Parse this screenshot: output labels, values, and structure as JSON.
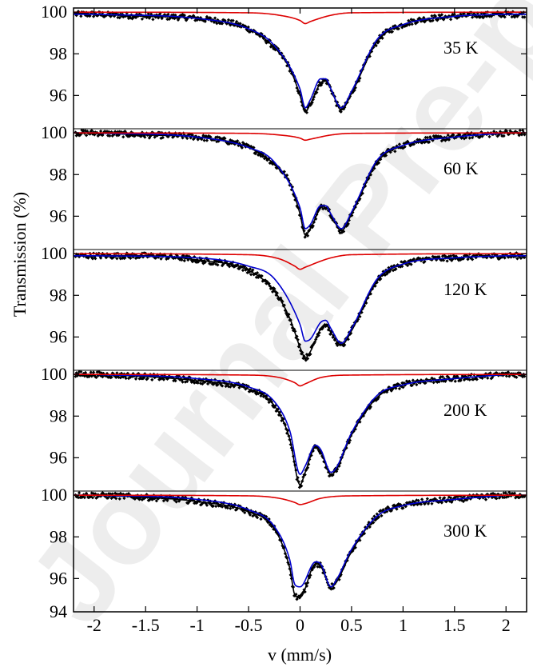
{
  "watermark": "Journal Pre-proof",
  "chart_data": {
    "type": "line",
    "xlabel": "v (mm/s)",
    "ylabel": "Transmission (%)",
    "xlim": [
      -2.2,
      2.2
    ],
    "x_ticks": [
      -2,
      -1.5,
      -1,
      -0.5,
      0,
      0.5,
      1,
      1.5,
      2
    ],
    "x_tick_labels": [
      "-2",
      "-1.5",
      "-1",
      "-0.5",
      "0",
      "0.5",
      "1",
      "1.5",
      "2"
    ],
    "panel_ylim": [
      94.4,
      100.2
    ],
    "y_ticks": [
      96,
      98,
      100
    ],
    "y_tick_labels": [
      "96",
      "98",
      "100"
    ],
    "bottom_tick_label": "94",
    "colors": {
      "data": "#000000",
      "total_fit": "#000000",
      "doublet": "#0000cc",
      "singlet": "#dd0000"
    },
    "panels": [
      {
        "label": "35 K",
        "data_points": {
          "x": [
            -2.0,
            -1.5,
            -1.0,
            -0.5,
            -0.25,
            -0.1,
            0.0,
            0.05,
            0.1,
            0.2,
            0.25,
            0.3,
            0.4,
            0.5,
            0.75,
            1.0,
            1.5,
            2.0
          ],
          "y": [
            99.9,
            99.8,
            99.7,
            99.2,
            98.3,
            97.3,
            96.0,
            95.2,
            95.6,
            96.6,
            96.7,
            96.3,
            95.3,
            96.1,
            98.6,
            99.4,
            99.8,
            99.9
          ]
        },
        "doublet": {
          "x": [
            -2.0,
            -1.0,
            -0.5,
            -0.25,
            0.0,
            0.05,
            0.1,
            0.2,
            0.25,
            0.3,
            0.4,
            0.5,
            0.75,
            1.0,
            1.5,
            2.0
          ],
          "y": [
            99.9,
            99.7,
            99.2,
            98.4,
            96.3,
            95.4,
            95.8,
            96.8,
            96.8,
            96.3,
            95.4,
            96.2,
            98.7,
            99.4,
            99.8,
            99.9
          ]
        },
        "singlet": {
          "x": [
            -2.2,
            -0.5,
            -0.2,
            0.0,
            0.05,
            0.1,
            0.3,
            0.5,
            2.2
          ],
          "y": [
            100.0,
            99.97,
            99.85,
            99.6,
            99.45,
            99.55,
            99.85,
            99.97,
            100.0
          ]
        }
      },
      {
        "label": "60 K",
        "data_points": {
          "x": [
            -2.0,
            -1.5,
            -1.0,
            -0.5,
            -0.25,
            -0.1,
            0.0,
            0.05,
            0.1,
            0.2,
            0.25,
            0.3,
            0.4,
            0.5,
            0.75,
            1.0,
            1.5,
            2.0
          ],
          "y": [
            100.0,
            99.9,
            99.8,
            99.3,
            98.5,
            97.6,
            96.1,
            95.1,
            95.4,
            96.4,
            96.5,
            96.1,
            95.3,
            96.1,
            98.6,
            99.4,
            99.8,
            100.0
          ]
        },
        "doublet": {
          "x": [
            -2.0,
            -1.0,
            -0.5,
            -0.25,
            0.0,
            0.05,
            0.1,
            0.2,
            0.25,
            0.3,
            0.4,
            0.5,
            0.75,
            1.0,
            1.5,
            2.0
          ],
          "y": [
            100.0,
            99.8,
            99.3,
            98.6,
            96.4,
            95.4,
            95.6,
            96.5,
            96.5,
            96.1,
            95.4,
            96.2,
            98.7,
            99.4,
            99.8,
            100.0
          ]
        },
        "singlet": {
          "x": [
            -2.2,
            -0.5,
            -0.2,
            0.0,
            0.05,
            0.1,
            0.3,
            0.5,
            2.2
          ],
          "y": [
            100.0,
            99.98,
            99.9,
            99.75,
            99.65,
            99.7,
            99.9,
            99.98,
            100.0
          ]
        }
      },
      {
        "label": "120 K",
        "data_points": {
          "x": [
            -2.0,
            -1.5,
            -1.0,
            -0.5,
            -0.25,
            -0.1,
            0.0,
            0.05,
            0.1,
            0.2,
            0.25,
            0.3,
            0.4,
            0.5,
            0.75,
            1.0,
            1.5,
            2.0
          ],
          "y": [
            99.9,
            99.9,
            99.7,
            99.2,
            98.2,
            96.9,
            95.5,
            95.0,
            95.3,
            96.4,
            96.6,
            96.2,
            95.6,
            96.3,
            98.7,
            99.5,
            99.8,
            99.9
          ]
        },
        "doublet": {
          "x": [
            -2.0,
            -1.0,
            -0.5,
            -0.25,
            0.0,
            0.05,
            0.1,
            0.2,
            0.25,
            0.3,
            0.4,
            0.5,
            0.75,
            1.0,
            1.5,
            2.0
          ],
          "y": [
            99.9,
            99.8,
            99.4,
            98.8,
            96.6,
            95.8,
            95.9,
            96.7,
            96.8,
            96.4,
            95.7,
            96.4,
            98.8,
            99.5,
            99.8,
            99.9
          ]
        },
        "singlet": {
          "x": [
            -2.2,
            -0.5,
            -0.2,
            -0.05,
            0.0,
            0.05,
            0.3,
            0.5,
            2.2
          ],
          "y": [
            100.0,
            99.95,
            99.75,
            99.4,
            99.25,
            99.35,
            99.8,
            99.95,
            100.0
          ]
        }
      },
      {
        "label": "200 K",
        "data_points": {
          "x": [
            -2.0,
            -1.5,
            -1.0,
            -0.5,
            -0.25,
            -0.1,
            0.0,
            0.05,
            0.15,
            0.2,
            0.3,
            0.35,
            0.5,
            0.75,
            1.0,
            1.5,
            2.0
          ],
          "y": [
            100.0,
            99.9,
            99.7,
            99.3,
            98.5,
            96.9,
            94.7,
            95.3,
            96.5,
            96.3,
            95.2,
            95.4,
            97.1,
            98.9,
            99.5,
            99.8,
            100.0
          ]
        },
        "doublet": {
          "x": [
            -2.0,
            -1.0,
            -0.5,
            -0.25,
            -0.1,
            0.0,
            0.05,
            0.15,
            0.2,
            0.3,
            0.35,
            0.5,
            0.75,
            1.0,
            1.5,
            2.0
          ],
          "y": [
            100.0,
            99.8,
            99.4,
            98.7,
            97.3,
            95.2,
            95.6,
            96.6,
            96.4,
            95.3,
            95.5,
            97.2,
            99.0,
            99.5,
            99.8,
            100.0
          ]
        },
        "singlet": {
          "x": [
            -2.2,
            -0.5,
            -0.2,
            -0.05,
            0.0,
            0.05,
            0.2,
            0.5,
            2.2
          ],
          "y": [
            100.0,
            99.97,
            99.85,
            99.6,
            99.45,
            99.55,
            99.85,
            99.97,
            100.0
          ]
        }
      },
      {
        "label": "300 K",
        "data_points": {
          "x": [
            -2.0,
            -1.5,
            -1.0,
            -0.5,
            -0.25,
            -0.1,
            -0.05,
            0.0,
            0.15,
            0.2,
            0.3,
            0.35,
            0.5,
            0.75,
            1.0,
            1.5,
            2.0
          ],
          "y": [
            100.0,
            99.9,
            99.7,
            99.2,
            98.4,
            96.5,
            95.2,
            95.1,
            96.7,
            96.6,
            95.6,
            95.8,
            97.3,
            99.0,
            99.5,
            99.8,
            100.0
          ]
        },
        "doublet": {
          "x": [
            -2.0,
            -1.0,
            -0.5,
            -0.25,
            -0.1,
            -0.05,
            0.0,
            0.15,
            0.2,
            0.3,
            0.35,
            0.5,
            0.75,
            1.0,
            1.5,
            2.0
          ],
          "y": [
            100.0,
            99.8,
            99.3,
            98.5,
            96.9,
            95.7,
            95.6,
            96.8,
            96.7,
            95.6,
            95.9,
            97.4,
            99.0,
            99.5,
            99.8,
            100.0
          ]
        },
        "singlet": {
          "x": [
            -2.2,
            -0.5,
            -0.2,
            -0.05,
            0.0,
            0.05,
            0.2,
            0.5,
            2.2
          ],
          "y": [
            100.0,
            99.97,
            99.85,
            99.65,
            99.55,
            99.6,
            99.85,
            99.97,
            100.0
          ]
        }
      }
    ]
  }
}
